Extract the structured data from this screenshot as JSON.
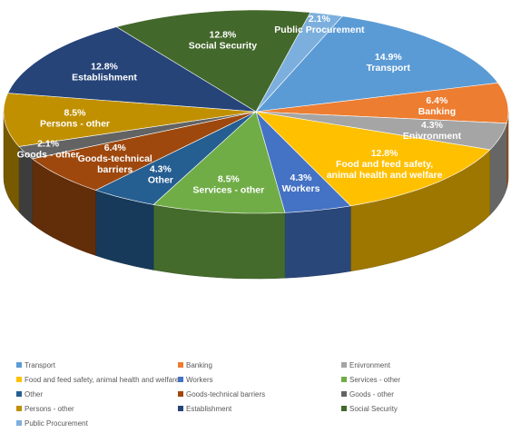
{
  "chart_data": {
    "type": "pie",
    "title": "",
    "slices": [
      {
        "name": "Transport",
        "value": 14.9,
        "label": "14.9%",
        "color": "#5b9bd5"
      },
      {
        "name": "Banking",
        "value": 6.4,
        "label": "6.4%",
        "color": "#ed7d31"
      },
      {
        "name": "Enivronment",
        "value": 4.3,
        "label": "4.3%",
        "color": "#a5a5a5"
      },
      {
        "name": "Food and feed safety, animal health and welfare",
        "value": 12.8,
        "label": "12.8%",
        "color": "#ffc000",
        "display_lines": [
          "Food and feed safety,",
          "animal health and welfare"
        ]
      },
      {
        "name": "Workers",
        "value": 4.3,
        "label": "4.3%",
        "color": "#4472c4"
      },
      {
        "name": "Services - other",
        "value": 8.5,
        "label": "8.5%",
        "color": "#70ad47"
      },
      {
        "name": "Other",
        "value": 4.3,
        "label": "4.3%",
        "color": "#255e91"
      },
      {
        "name": "Goods-technical barriers",
        "value": 6.4,
        "label": "6.4%",
        "color": "#9e480e",
        "display_lines": [
          "Goods-technical",
          "barriers"
        ]
      },
      {
        "name": "Goods - other",
        "value": 2.1,
        "label": "2.1%",
        "color": "#636363"
      },
      {
        "name": "Persons - other",
        "value": 8.5,
        "label": "8.5%",
        "color": "#c09000"
      },
      {
        "name": "Establishment",
        "value": 12.8,
        "label": "12.8%",
        "color": "#264478"
      },
      {
        "name": "Social Security",
        "value": 12.8,
        "label": "12.8%",
        "color": "#43682b"
      },
      {
        "name": "Public Procurement",
        "value": 2.1,
        "label": "2.1%",
        "color": "#7cafdd"
      }
    ],
    "legend_placement": "bottom",
    "style": "3d-exploded-pie"
  }
}
